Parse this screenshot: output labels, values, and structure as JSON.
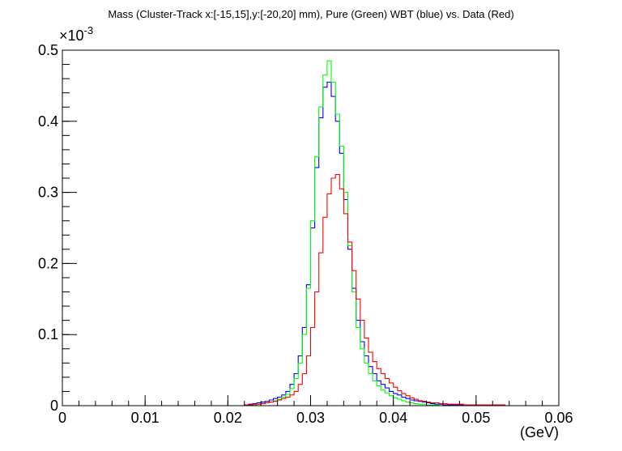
{
  "chart_data": {
    "type": "histogram",
    "title": "Mass (Cluster-Track x:[-15,15],y:[-20,20] mm), Pure (Green) WBT (blue) vs. Data (Red)",
    "xlabel": "(GeV)",
    "ylabel": "",
    "y_exponent_label": "×10",
    "y_exponent_power": "-3",
    "xlim": [
      0,
      0.06
    ],
    "ylim": [
      0,
      0.5
    ],
    "x_ticks": [
      0,
      0.01,
      0.02,
      0.03,
      0.04,
      0.05,
      0.06
    ],
    "x_tick_labels": [
      "0",
      "0.01",
      "0.02",
      "0.03",
      "0.04",
      "0.05",
      "0.06"
    ],
    "y_ticks": [
      0,
      0.1,
      0.2,
      0.3,
      0.4,
      0.5
    ],
    "y_tick_labels": [
      "0",
      "0.1",
      "0.2",
      "0.3",
      "0.4",
      "0.5"
    ],
    "grid": false,
    "bin_width": 0.0005,
    "series": [
      {
        "color": "#0000ff",
        "bin_start": 0.022,
        "values": [
          0.001,
          0.002,
          0.003,
          0.004,
          0.005,
          0.006,
          0.008,
          0.01,
          0.012,
          0.015,
          0.02,
          0.03,
          0.045,
          0.07,
          0.11,
          0.17,
          0.25,
          0.335,
          0.405,
          0.448,
          0.455,
          0.435,
          0.4,
          0.355,
          0.29,
          0.22,
          0.165,
          0.12,
          0.09,
          0.07,
          0.055,
          0.045,
          0.035,
          0.03,
          0.025,
          0.02,
          0.017,
          0.015,
          0.012,
          0.01,
          0.008,
          0.007,
          0.006,
          0.005,
          0.004,
          0.003,
          0.002,
          0.002,
          0.001,
          0.001,
          0.001,
          0.001,
          0.001,
          0.001,
          0.0
        ]
      },
      {
        "color": "#00ff00",
        "bin_start": 0.022,
        "values": [
          0.0,
          0.001,
          0.001,
          0.002,
          0.003,
          0.004,
          0.005,
          0.007,
          0.009,
          0.012,
          0.016,
          0.024,
          0.038,
          0.06,
          0.1,
          0.165,
          0.26,
          0.35,
          0.42,
          0.465,
          0.485,
          0.455,
          0.41,
          0.365,
          0.3,
          0.225,
          0.16,
          0.11,
          0.08,
          0.06,
          0.045,
          0.035,
          0.028,
          0.022,
          0.018,
          0.014,
          0.011,
          0.009,
          0.007,
          0.005,
          0.004,
          0.003,
          0.002,
          0.002,
          0.001,
          0.001,
          0.001,
          0.0,
          0.0,
          0.0,
          0.0,
          0.0,
          0.0,
          0.0,
          0.0
        ]
      },
      {
        "color": "#ff0000",
        "bin_start": 0.022,
        "values": [
          0.001,
          0.001,
          0.002,
          0.002,
          0.003,
          0.004,
          0.005,
          0.006,
          0.008,
          0.01,
          0.012,
          0.015,
          0.02,
          0.03,
          0.045,
          0.07,
          0.11,
          0.16,
          0.215,
          0.265,
          0.298,
          0.32,
          0.325,
          0.305,
          0.27,
          0.23,
          0.19,
          0.15,
          0.12,
          0.095,
          0.075,
          0.062,
          0.052,
          0.045,
          0.038,
          0.032,
          0.026,
          0.021,
          0.017,
          0.014,
          0.011,
          0.009,
          0.007,
          0.006,
          0.005,
          0.004,
          0.004,
          0.003,
          0.003,
          0.002,
          0.002,
          0.002,
          0.002,
          0.001,
          0.001,
          0.001,
          0.001,
          0.001,
          0.001,
          0.001,
          0.001,
          0.001,
          0.001,
          0.0
        ]
      }
    ]
  }
}
